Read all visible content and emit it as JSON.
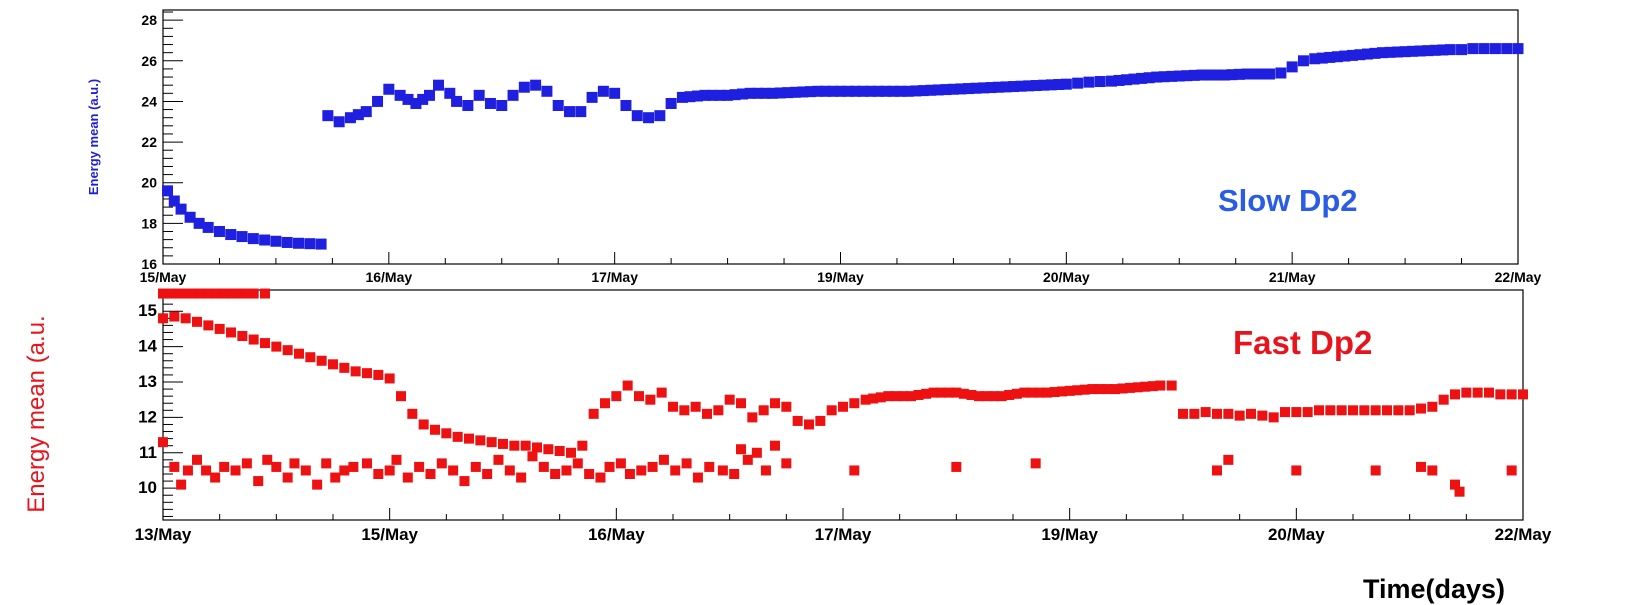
{
  "figure": {
    "text_color": "#000000",
    "frame_color": "#000000"
  },
  "chart_data": [
    {
      "type": "scatter",
      "label": "Slow Dp2",
      "label_color": "#2b5ce6",
      "ylabel": "Energy mean (a.u.)",
      "ylabel_color": "#1f1fd6",
      "xlabel": "",
      "marker_color": "#1f1fe0",
      "ylim": [
        16,
        28.5
      ],
      "yticks": [
        16,
        18,
        20,
        22,
        24,
        26,
        28
      ],
      "xlim": [
        0,
        6
      ],
      "xtick_labels": [
        "15/May",
        "16/May",
        "17/May",
        "19/May",
        "20/May",
        "21/May",
        "22/May"
      ],
      "xtick_positions": [
        0,
        1,
        2,
        3,
        4,
        5,
        6
      ],
      "grid": false,
      "series": [
        {
          "segments": [
            {
              "x": [
                0.02,
                0.05,
                0.08,
                0.12,
                0.16,
                0.2,
                0.25,
                0.3,
                0.35,
                0.4,
                0.45,
                0.5,
                0.55,
                0.6,
                0.65,
                0.7
              ],
              "y": [
                19.6,
                19.1,
                18.7,
                18.3,
                18.0,
                17.8,
                17.6,
                17.45,
                17.35,
                17.25,
                17.18,
                17.12,
                17.06,
                17.02,
                17.0,
                16.98
              ]
            },
            {
              "x": [
                0.73,
                0.78,
                0.83,
                0.9,
                0.95,
                1.0,
                1.05,
                1.12,
                1.18,
                1.22,
                1.27,
                1.3,
                1.35,
                1.4,
                1.45,
                1.5,
                1.55,
                1.6,
                1.65,
                1.7,
                1.75,
                1.8,
                1.85,
                1.9,
                1.95,
                2.0,
                2.05,
                2.1,
                2.15,
                2.2,
                2.25,
                2.3,
                2.4,
                2.5,
                2.6,
                2.7,
                2.8,
                2.9,
                3.0,
                3.1,
                3.2,
                3.3,
                3.4,
                3.5,
                3.6,
                3.7,
                3.8,
                3.9,
                4.0
              ],
              "y": [
                23.3,
                23.0,
                23.2,
                23.5,
                24.0,
                24.6,
                24.3,
                23.9,
                24.3,
                24.8,
                24.4,
                24.0,
                23.8,
                24.3,
                23.9,
                23.8,
                24.3,
                24.7,
                24.8,
                24.5,
                23.8,
                23.5,
                23.5,
                24.2,
                24.5,
                24.4,
                23.8,
                23.3,
                23.2,
                23.3,
                23.9,
                24.2,
                24.3,
                24.3,
                24.4,
                24.4,
                24.45,
                24.5,
                24.5,
                24.5,
                24.5,
                24.5,
                24.55,
                24.6,
                24.65,
                24.7,
                24.75,
                24.8,
                24.85
              ]
            },
            {
              "x": [
                4.05,
                4.1,
                4.15
              ],
              "y": [
                24.9,
                24.95,
                24.98
              ]
            },
            {
              "x": [
                4.2,
                4.3,
                4.4,
                4.5,
                4.6,
                4.7,
                4.8,
                4.9,
                4.95,
                5.0,
                5.05,
                5.1,
                5.2,
                5.3,
                5.4,
                5.5,
                5.6,
                5.7
              ],
              "y": [
                25.0,
                25.1,
                25.2,
                25.25,
                25.3,
                25.3,
                25.35,
                25.35,
                25.4,
                25.7,
                26.0,
                26.1,
                26.2,
                26.3,
                26.4,
                26.45,
                26.5,
                26.55
              ]
            },
            {
              "x": [
                5.75,
                5.8,
                5.85,
                5.9,
                5.95,
                6.0
              ],
              "y": [
                26.55,
                26.6,
                26.6,
                26.6,
                26.6,
                26.6
              ]
            }
          ]
        }
      ]
    },
    {
      "type": "scatter",
      "label": "Fast Dp2",
      "label_color": "#e8141c",
      "ylabel": "Energy mean (a.u.",
      "ylabel_color": "#e8141c",
      "xlabel": "Time(days)",
      "marker_color": "#ee1111",
      "ylim": [
        9.1,
        15.6
      ],
      "yticks": [
        10,
        11,
        12,
        13,
        14,
        15
      ],
      "xlim": [
        0,
        6
      ],
      "xtick_labels": [
        "13/May",
        "15/May",
        "16/May",
        "17/May",
        "19/May",
        "20/May",
        "22/May"
      ],
      "xtick_positions": [
        0,
        1,
        2,
        3,
        4,
        5,
        6
      ],
      "grid": false,
      "series": [
        {
          "segments": [
            {
              "x": [
                0.0,
                0.05,
                0.1,
                0.15,
                0.2,
                0.25,
                0.3,
                0.35,
                0.4,
                0.45,
                0.5,
                0.55,
                0.6,
                0.65,
                0.7,
                0.75,
                0.8,
                0.85,
                0.9,
                0.95,
                1.0,
                1.05,
                1.1,
                1.15,
                1.2,
                1.25,
                1.3,
                1.35,
                1.4,
                1.45,
                1.5,
                1.55,
                1.6,
                1.65,
                1.7,
                1.75,
                1.8
              ],
              "y": [
                14.8,
                14.85,
                14.8,
                14.7,
                14.6,
                14.5,
                14.4,
                14.3,
                14.2,
                14.1,
                14.0,
                13.9,
                13.8,
                13.7,
                13.6,
                13.5,
                13.4,
                13.3,
                13.25,
                13.2,
                13.1,
                12.6,
                12.1,
                11.8,
                11.65,
                11.55,
                11.45,
                11.4,
                11.35,
                11.3,
                11.25,
                11.2,
                11.2,
                11.15,
                11.1,
                11.05,
                11.0
              ]
            },
            {
              "x": [
                1.85,
                1.9,
                1.95,
                2.0,
                2.05,
                2.1,
                2.15,
                2.2,
                2.25,
                2.3,
                2.35,
                2.4,
                2.45,
                2.5,
                2.55,
                2.6,
                2.65,
                2.7,
                2.75,
                2.8,
                2.85,
                2.9,
                2.95,
                3.0,
                3.05,
                3.1,
                3.2,
                3.3,
                3.4,
                3.5,
                3.6,
                3.7,
                3.8,
                3.9,
                4.0,
                4.1,
                4.2,
                4.3,
                4.4,
                4.45
              ],
              "y": [
                11.2,
                12.1,
                12.4,
                12.6,
                12.9,
                12.6,
                12.5,
                12.7,
                12.3,
                12.2,
                12.3,
                12.1,
                12.2,
                12.5,
                12.4,
                12.0,
                12.2,
                12.4,
                12.3,
                11.9,
                11.8,
                11.9,
                12.2,
                12.3,
                12.4,
                12.5,
                12.6,
                12.6,
                12.7,
                12.7,
                12.6,
                12.6,
                12.7,
                12.7,
                12.75,
                12.8,
                12.8,
                12.85,
                12.9,
                12.9
              ]
            },
            {
              "x": [
                4.5,
                4.55,
                4.6,
                4.65,
                4.7,
                4.75,
                4.8,
                4.85,
                4.9
              ],
              "y": [
                12.1,
                12.1,
                12.15,
                12.1,
                12.1,
                12.05,
                12.1,
                12.05,
                12.0
              ]
            },
            {
              "x": [
                4.95,
                5.0,
                5.05,
                5.1,
                5.15,
                5.2,
                5.25,
                5.3,
                5.35,
                5.4,
                5.45,
                5.5,
                5.55,
                5.6,
                5.65,
                5.7,
                5.75,
                5.8,
                5.85,
                5.9,
                5.95,
                6.0
              ],
              "y": [
                12.15,
                12.15,
                12.15,
                12.2,
                12.2,
                12.2,
                12.2,
                12.2,
                12.2,
                12.2,
                12.2,
                12.2,
                12.25,
                12.3,
                12.5,
                12.65,
                12.7,
                12.7,
                12.7,
                12.65,
                12.65,
                12.65
              ]
            },
            {
              "x": [
                0.0,
                0.1,
                0.2,
                0.3,
                0.4,
                0.45
              ],
              "y": [
                15.5,
                15.5,
                15.5,
                15.5,
                15.5,
                15.5
              ]
            }
          ]
        }
      ],
      "scattered_points": {
        "x": [
          0.0,
          0.05,
          0.08,
          0.11,
          0.15,
          0.19,
          0.23,
          0.27,
          0.32,
          0.37,
          0.42,
          0.46,
          0.5,
          0.55,
          0.58,
          0.63,
          0.68,
          0.72,
          0.76,
          0.8,
          0.84,
          0.9,
          0.95,
          1.0,
          1.03,
          1.08,
          1.13,
          1.18,
          1.23,
          1.28,
          1.33,
          1.38,
          1.43,
          1.48,
          1.53,
          1.58,
          1.63,
          1.68,
          1.73,
          1.78,
          1.83,
          1.88,
          1.93,
          1.97,
          2.02,
          2.06,
          2.11,
          2.16,
          2.21,
          2.26,
          2.31,
          2.36,
          2.41,
          2.47,
          2.52,
          2.55,
          2.58,
          2.62,
          2.66,
          2.7,
          2.75,
          3.05,
          3.5,
          3.85,
          4.65,
          4.7,
          5.0,
          5.35,
          5.55,
          5.6,
          5.7,
          5.72,
          5.95
        ],
        "y": [
          11.3,
          10.6,
          10.1,
          10.5,
          10.8,
          10.5,
          10.3,
          10.6,
          10.5,
          10.7,
          10.2,
          10.8,
          10.6,
          10.3,
          10.7,
          10.5,
          10.1,
          10.7,
          10.3,
          10.5,
          10.6,
          10.7,
          10.4,
          10.5,
          10.8,
          10.3,
          10.6,
          10.4,
          10.7,
          10.5,
          10.2,
          10.6,
          10.4,
          10.8,
          10.5,
          10.3,
          10.9,
          10.6,
          10.4,
          10.5,
          10.7,
          10.4,
          10.3,
          10.6,
          10.7,
          10.4,
          10.5,
          10.6,
          10.8,
          10.5,
          10.7,
          10.3,
          10.6,
          10.5,
          10.4,
          11.1,
          10.8,
          11.0,
          10.5,
          11.2,
          10.7,
          10.5,
          10.6,
          10.7,
          10.5,
          10.8,
          10.5,
          10.5,
          10.6,
          10.5,
          10.1,
          9.9,
          10.5
        ]
      }
    }
  ]
}
